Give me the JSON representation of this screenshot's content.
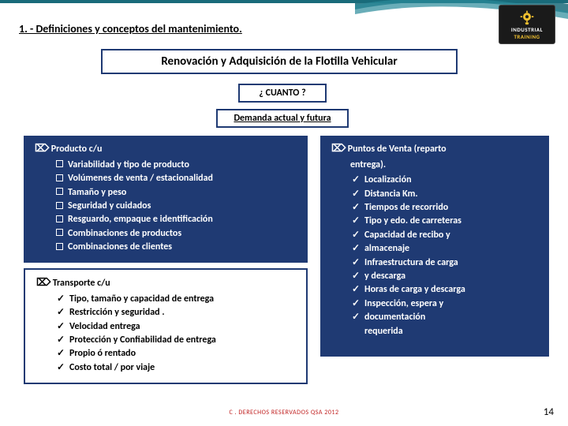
{
  "header": {
    "section_title": "1. - Definiciones y conceptos del mantenimiento.",
    "logo": {
      "line1": "INDUSTRIAL",
      "line2": "TRAINING"
    }
  },
  "banner": "Renovación y Adquisición de la Flotilla Vehicular",
  "cuanto": "¿ CUANTO ?",
  "demanda": "Demanda actual y futura",
  "producto": {
    "heading": "Producto c/u",
    "items": [
      "Variabilidad y tipo de producto",
      "Volúmenes de venta / estacionalidad",
      "Tamaño y peso",
      "Seguridad y cuidados",
      "Resguardo, empaque e identificación",
      "Combinaciones de productos",
      "Combinaciones de clientes"
    ]
  },
  "transporte": {
    "heading": "Transporte c/u",
    "items": [
      "Tipo, tamaño y capacidad de entrega",
      "Restricción y seguridad .",
      "Velocidad entrega",
      "Protección y Confiabilidad de entrega",
      "Propio ó rentado",
      "Costo total / por viaje"
    ]
  },
  "puntos": {
    "heading": "Puntos de Venta (reparto",
    "heading2": "entrega).",
    "items": [
      "Localización",
      "Distancia Km.",
      "Tiempos de recorrido",
      "Tipo y edo. de carreteras",
      "Capacidad de recibo y",
      "almacenaje",
      "Infraestructura de carga",
      "y descarga",
      "Horas de carga y descarga",
      "Inspección, espera y",
      "documentación",
      "requerida"
    ],
    "checks": [
      true,
      true,
      true,
      true,
      true,
      true,
      true,
      true,
      true,
      true,
      true,
      false
    ]
  },
  "footer": {
    "credit": "C . DERECHOS RESERVADOS QSA 2012",
    "page": "14"
  },
  "colors": {
    "box_bg": "#1f3a73",
    "accent": "#1a6b7a",
    "logo_yellow": "#f0c030",
    "credit": "#c02020"
  }
}
